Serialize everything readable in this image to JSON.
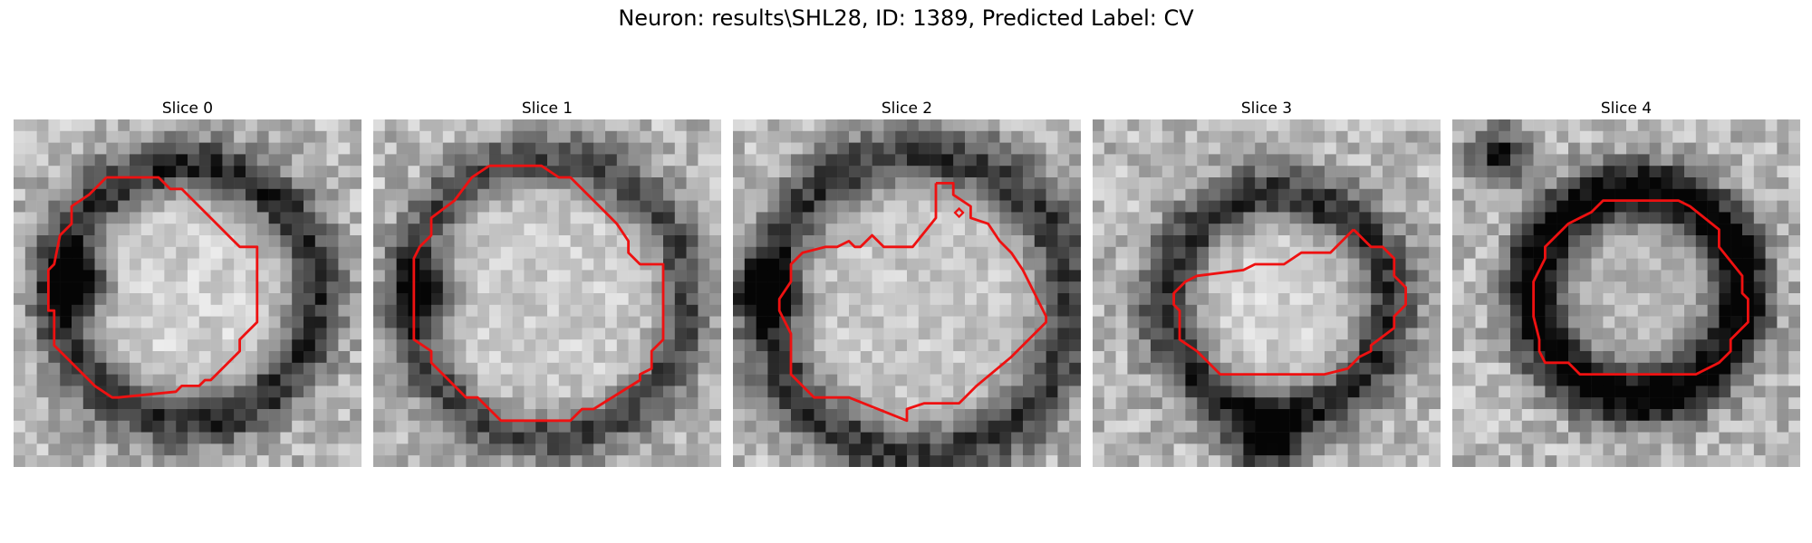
{
  "figure": {
    "title": "Neuron: results\\SHL28, ID: 1389, Predicted Label: CV",
    "contour_color": "#ee1111",
    "colormap": "grayscale",
    "panels": [
      {
        "title": "Slice 0"
      },
      {
        "title": "Slice 1"
      },
      {
        "title": "Slice 2"
      },
      {
        "title": "Slice 3"
      },
      {
        "title": "Slice 4"
      }
    ]
  }
}
